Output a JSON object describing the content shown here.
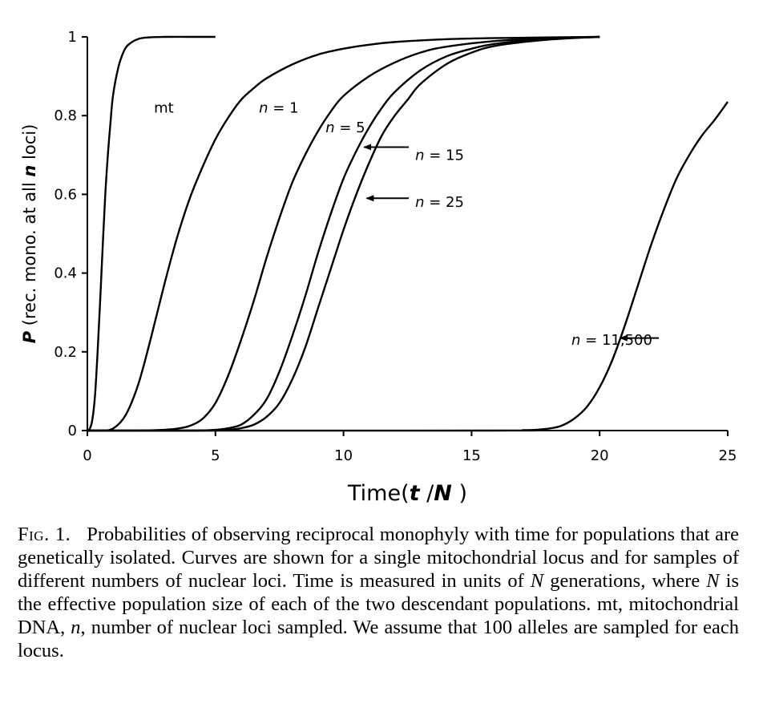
{
  "chart_data": {
    "type": "line",
    "title": "",
    "xlabel_parts": [
      "Time(",
      "t",
      " /",
      "N",
      " )"
    ],
    "ylabel_parts": [
      "P",
      " (rec. mono. at all ",
      "n",
      "  loci)"
    ],
    "xlim": [
      0,
      25
    ],
    "ylim": [
      0,
      1
    ],
    "xticks": [
      0,
      5,
      10,
      15,
      20,
      25
    ],
    "yticks": [
      0,
      0.2,
      0.4,
      0.6,
      0.8,
      1
    ],
    "ytick_labels": [
      "0",
      "0.2",
      "0.4",
      "0.6",
      "0.8",
      "1"
    ],
    "grid": false,
    "legend": "none",
    "series": [
      {
        "x": [
          0,
          0.1,
          0.2,
          0.3,
          0.4,
          0.5,
          0.6,
          0.7,
          0.8,
          0.9,
          1.0,
          1.2,
          1.4,
          1.6,
          2.0,
          2.5,
          3.0,
          4.0,
          5.0
        ],
        "y": [
          0,
          0.005,
          0.03,
          0.09,
          0.2,
          0.33,
          0.47,
          0.6,
          0.7,
          0.78,
          0.85,
          0.92,
          0.96,
          0.98,
          0.995,
          0.999,
          1,
          1,
          1
        ]
      },
      {
        "x": [
          0,
          0.5,
          1,
          1.5,
          2,
          2.5,
          3,
          3.5,
          4,
          4.5,
          5,
          5.5,
          6,
          6.5,
          7,
          8,
          9,
          10,
          11,
          12,
          14,
          16,
          20
        ],
        "y": [
          0,
          0,
          0.005,
          0.04,
          0.12,
          0.24,
          0.37,
          0.49,
          0.59,
          0.67,
          0.74,
          0.795,
          0.84,
          0.87,
          0.895,
          0.93,
          0.955,
          0.97,
          0.98,
          0.987,
          0.994,
          0.997,
          1
        ]
      },
      {
        "x": [
          0,
          2,
          3,
          3.5,
          4,
          4.5,
          5,
          5.5,
          6,
          6.5,
          7,
          7.5,
          8,
          8.5,
          9,
          9.5,
          10,
          11,
          12,
          13,
          14,
          16,
          18,
          20
        ],
        "y": [
          0,
          0,
          0.002,
          0.005,
          0.012,
          0.03,
          0.07,
          0.14,
          0.23,
          0.33,
          0.44,
          0.54,
          0.63,
          0.7,
          0.76,
          0.81,
          0.85,
          0.9,
          0.935,
          0.96,
          0.975,
          0.99,
          0.996,
          1
        ]
      },
      {
        "x": [
          0,
          4,
          5,
          5.5,
          6,
          6.5,
          7,
          7.5,
          8,
          8.5,
          9,
          9.5,
          10,
          10.5,
          11,
          11.5,
          12,
          13,
          14,
          15,
          16,
          18,
          20
        ],
        "y": [
          0,
          0,
          0.002,
          0.006,
          0.015,
          0.04,
          0.08,
          0.15,
          0.24,
          0.34,
          0.45,
          0.55,
          0.64,
          0.71,
          0.77,
          0.82,
          0.86,
          0.915,
          0.95,
          0.97,
          0.983,
          0.995,
          1
        ]
      },
      {
        "x": [
          0,
          4.5,
          5.5,
          6,
          6.5,
          7,
          7.5,
          8,
          8.5,
          9,
          9.5,
          10,
          10.5,
          11,
          11.5,
          12,
          12.5,
          13,
          14,
          15,
          16,
          18,
          20
        ],
        "y": [
          0,
          0,
          0.002,
          0.006,
          0.015,
          0.035,
          0.07,
          0.13,
          0.21,
          0.31,
          0.41,
          0.51,
          0.6,
          0.68,
          0.75,
          0.8,
          0.84,
          0.88,
          0.93,
          0.96,
          0.978,
          0.993,
          1
        ]
      },
      {
        "x": [
          0,
          16,
          17,
          17.5,
          18,
          18.5,
          19,
          19.5,
          20,
          20.5,
          21,
          21.5,
          22,
          22.5,
          23,
          23.5,
          24,
          24.5,
          25
        ],
        "y": [
          0,
          0,
          0.001,
          0.002,
          0.005,
          0.012,
          0.03,
          0.06,
          0.11,
          0.18,
          0.27,
          0.37,
          0.47,
          0.56,
          0.64,
          0.7,
          0.75,
          0.79,
          0.835
        ]
      }
    ],
    "annotations": [
      {
        "parts": [
          "mt"
        ],
        "x": 2.6,
        "y": 0.82
      },
      {
        "parts": [
          "n",
          " = 1"
        ],
        "x": 6.7,
        "y": 0.82
      },
      {
        "parts": [
          "n",
          " = 5"
        ],
        "x": 9.3,
        "y": 0.77
      },
      {
        "parts": [
          "n",
          " = 15"
        ],
        "x": 12.8,
        "y": 0.7,
        "arrow_to": [
          10.8,
          0.72
        ]
      },
      {
        "parts": [
          "n",
          " = 25"
        ],
        "x": 12.8,
        "y": 0.58,
        "arrow_to": [
          10.9,
          0.59
        ]
      },
      {
        "parts": [
          "n",
          "  = 11,500"
        ],
        "x": 18.9,
        "y": 0.23,
        "arrow_to": [
          20.8,
          0.235
        ]
      }
    ]
  },
  "caption": {
    "label": "Fig. 1.",
    "text_parts": [
      "Probabilities of observing reciprocal monophyly with time for populations that are genetically isolated. Curves are shown for a single mitochondrial locus and for samples of different numbers of nuclear loci. Time is measured in units of ",
      "N",
      " generations, where ",
      "N",
      " is the effective population size of each of the two descendant populations. mt, mitochondrial DNA, ",
      "n",
      ", number of nuclear loci sampled. We assume that 100 alleles are sampled for each locus."
    ]
  }
}
